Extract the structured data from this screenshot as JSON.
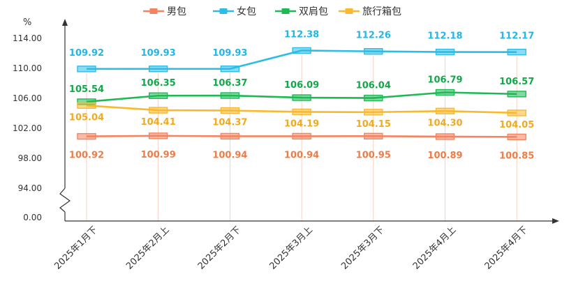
{
  "chart_data": {
    "type": "line",
    "y_unit": "%",
    "categories": [
      "2025年1月下",
      "2025年2月上",
      "2025年2月下",
      "2025年3月上",
      "2025年3月下",
      "2025年4月上",
      "2025年4月下"
    ],
    "y_ticks": [
      "0.00",
      "94.00",
      "98.00",
      "102.00",
      "106.00",
      "110.00",
      "114.00"
    ],
    "ylim_broken": [
      94,
      114
    ],
    "axis_break": "between 0.00 and 94.00",
    "legend_position": "top-center",
    "grid": false,
    "series": [
      {
        "name": "男包",
        "color": "#f4845f",
        "label_color": "#ef7b45",
        "values": [
          100.92,
          100.99,
          100.94,
          100.94,
          100.95,
          100.89,
          100.85
        ],
        "labels": [
          "100.92",
          "100.99",
          "100.94",
          "100.94",
          "100.95",
          "100.89",
          "100.85"
        ]
      },
      {
        "name": "女包",
        "color": "#2bbde8",
        "label_color": "#22b6e6",
        "values": [
          109.92,
          109.93,
          109.93,
          112.38,
          112.26,
          112.18,
          112.17
        ],
        "labels": [
          "109.92",
          "109.93",
          "109.93",
          "112.38",
          "112.26",
          "112.18",
          "112.17"
        ]
      },
      {
        "name": "双肩包",
        "color": "#1db954",
        "label_color": "#12a84a",
        "values": [
          105.54,
          106.35,
          106.37,
          106.09,
          106.04,
          106.79,
          106.57
        ],
        "labels": [
          "105.54",
          "106.35",
          "106.37",
          "106.09",
          "106.04",
          "106.79",
          "106.57"
        ]
      },
      {
        "name": "旅行箱包",
        "color": "#f9b82e",
        "label_color": "#f2a91e",
        "values": [
          105.04,
          104.41,
          104.37,
          104.19,
          104.15,
          104.3,
          104.05
        ],
        "labels": [
          "105.04",
          "104.41",
          "104.37",
          "104.19",
          "104.15",
          "104.30",
          "104.05"
        ]
      }
    ]
  }
}
